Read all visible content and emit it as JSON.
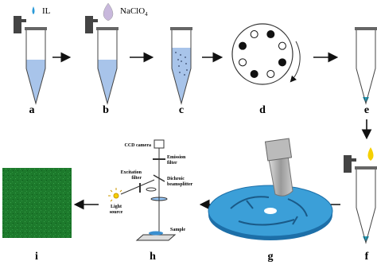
{
  "reagents": {
    "il": "IL",
    "naclo4": {
      "text": "NaClO",
      "subscript": "4"
    }
  },
  "step_labels": [
    "a",
    "b",
    "c",
    "d",
    "e",
    "f",
    "g",
    "h",
    "i"
  ],
  "microscope": {
    "camera": "CCD camera",
    "emission_filter": [
      "Emission",
      "filter"
    ],
    "excitation_filter": [
      "Excitation",
      "filter"
    ],
    "dichroic": [
      "Dichroic",
      "beamsplitter"
    ],
    "light_source": [
      "Light",
      "source"
    ],
    "sample": "Sample"
  }
}
